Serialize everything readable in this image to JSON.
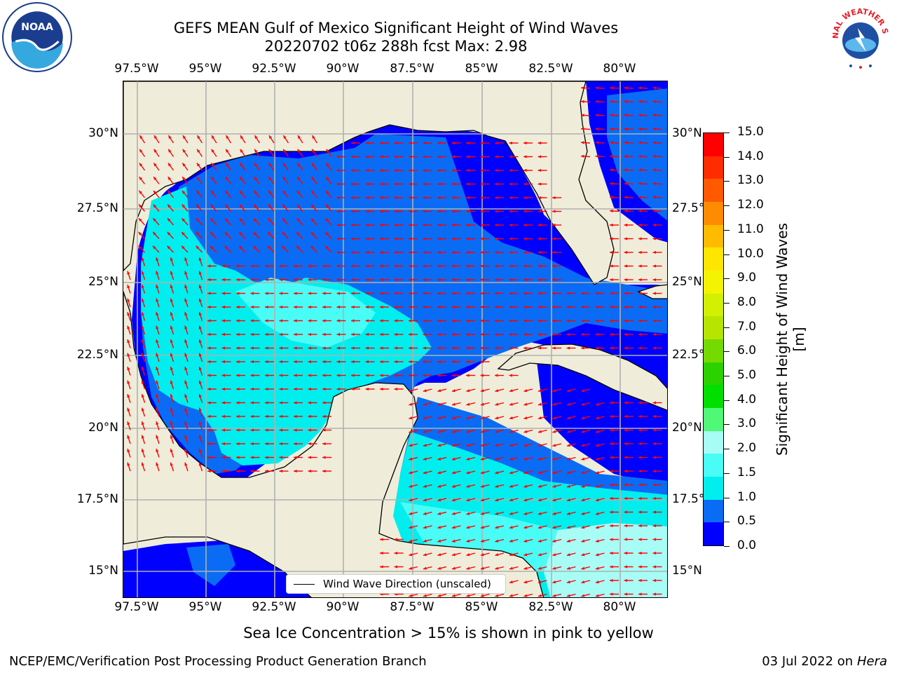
{
  "title": {
    "line1": "GEFS MEAN Gulf of Mexico Significant Height of Wind Waves",
    "line2": "20220702 t06z 288h fcst   Max: 2.98"
  },
  "map": {
    "lon_ticks": [
      "97.5°W",
      "95°W",
      "92.5°W",
      "90°W",
      "87.5°W",
      "85°W",
      "82.5°W",
      "80°W"
    ],
    "lat_ticks": [
      "30°N",
      "27.5°N",
      "25°N",
      "22.5°N",
      "20°N",
      "17.5°N",
      "15°N"
    ],
    "lon_range": [
      -98,
      -78
    ],
    "lat_range": [
      14,
      31.8
    ],
    "legend_label": "Wind Wave Direction (unscaled)",
    "colors": {
      "land": "#efedda",
      "coast": "#000000",
      "grid": "#b0b0b0",
      "arrow": "#ff0000"
    }
  },
  "colorbar": {
    "title": "Significant Height of Wind Waves [m]",
    "labels": [
      "15.0",
      "14.0",
      "13.0",
      "12.0",
      "11.0",
      "10.0",
      "9.0",
      "8.0",
      "7.0",
      "6.0",
      "5.0",
      "4.0",
      "3.0",
      "2.0",
      "1.5",
      "1.0",
      "0.5",
      "0.0"
    ],
    "colors": [
      "#0000ff",
      "#0a6cf4",
      "#00eeee",
      "#4afcf6",
      "#a8fcf6",
      "#50f878",
      "#00e000",
      "#2bd200",
      "#74da00",
      "#b7e500",
      "#d2f000",
      "#f4f400",
      "#ffe600",
      "#ffbb00",
      "#ff8c00",
      "#ff5a00",
      "#ff2c00",
      "#ff0000"
    ]
  },
  "note": "Sea Ice Concentration > 15% is shown in pink to yellow",
  "footer": {
    "left": "NCEP/EMC/Verification Post Processing Product Generation Branch",
    "date": "03 Jul 2022 on ",
    "host": "Hera"
  },
  "logos": {
    "noaa": "NOAA",
    "nws": "NATIONAL WEATHER SERVICE"
  }
}
